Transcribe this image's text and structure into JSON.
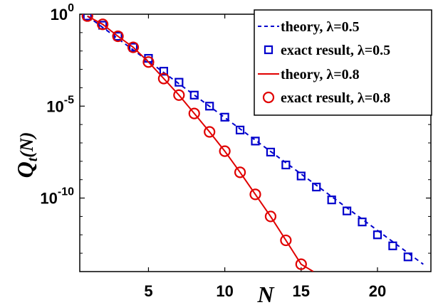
{
  "chart_data": {
    "type": "line",
    "xlabel": "N",
    "ylabel": "Q_t(N)",
    "ylabel_main": "Q",
    "ylabel_sub": "t",
    "ylabel_paren": "(N)",
    "xlim": [
      0.5,
      23.5
    ],
    "ylim": [
      1e-14,
      1
    ],
    "yscale": "log",
    "grid": false,
    "legend_position": "top-right",
    "xticks": [
      5,
      10,
      15,
      20
    ],
    "yticks": [
      {
        "exp": 0,
        "base": "10",
        "sup": "0"
      },
      {
        "exp": -5,
        "base": "10",
        "sup": "-5"
      },
      {
        "exp": -10,
        "base": "10",
        "sup": "-10"
      }
    ],
    "series": [
      {
        "name": "theory, λ=0.5",
        "kind": "line",
        "style": "dashed",
        "color": "#0000cc",
        "x": [
          1,
          23
        ],
        "log10_y": [
          -0.1,
          -13.6
        ]
      },
      {
        "name": "exact result, λ=0.5",
        "kind": "markers",
        "marker": "square",
        "color": "#0000cc",
        "x": [
          1,
          2,
          3,
          4,
          5,
          6,
          7,
          8,
          9,
          10,
          11,
          12,
          13,
          14,
          15,
          16,
          17,
          18,
          19,
          20,
          21,
          22
        ],
        "log10_y": [
          -0.1,
          -0.6,
          -1.2,
          -1.8,
          -2.4,
          -3.1,
          -3.7,
          -4.4,
          -5.0,
          -5.6,
          -6.3,
          -6.9,
          -7.5,
          -8.2,
          -8.8,
          -9.4,
          -10.1,
          -10.7,
          -11.3,
          -12.0,
          -12.6,
          -13.2
        ]
      },
      {
        "name": "theory, λ=0.8",
        "kind": "line",
        "style": "solid",
        "color": "#e00000",
        "x": [
          1,
          2,
          3,
          4,
          5,
          6,
          7,
          8,
          9,
          10,
          11,
          12,
          13,
          14,
          15,
          15.8
        ],
        "log10_y": [
          -0.1,
          -0.55,
          -1.2,
          -1.8,
          -2.6,
          -3.5,
          -4.4,
          -5.4,
          -6.4,
          -7.45,
          -8.6,
          -9.8,
          -11.0,
          -12.3,
          -13.6,
          -14.0
        ]
      },
      {
        "name": "exact result, λ=0.8",
        "kind": "markers",
        "marker": "circle",
        "color": "#e00000",
        "x": [
          1,
          2,
          3,
          4,
          5,
          6,
          7,
          8,
          9,
          10,
          11,
          12,
          13,
          14,
          15
        ],
        "log10_y": [
          -0.1,
          -0.55,
          -1.2,
          -1.8,
          -2.6,
          -3.5,
          -4.4,
          -5.4,
          -6.4,
          -7.45,
          -8.6,
          -9.8,
          -11.0,
          -12.3,
          -13.6
        ]
      }
    ]
  }
}
